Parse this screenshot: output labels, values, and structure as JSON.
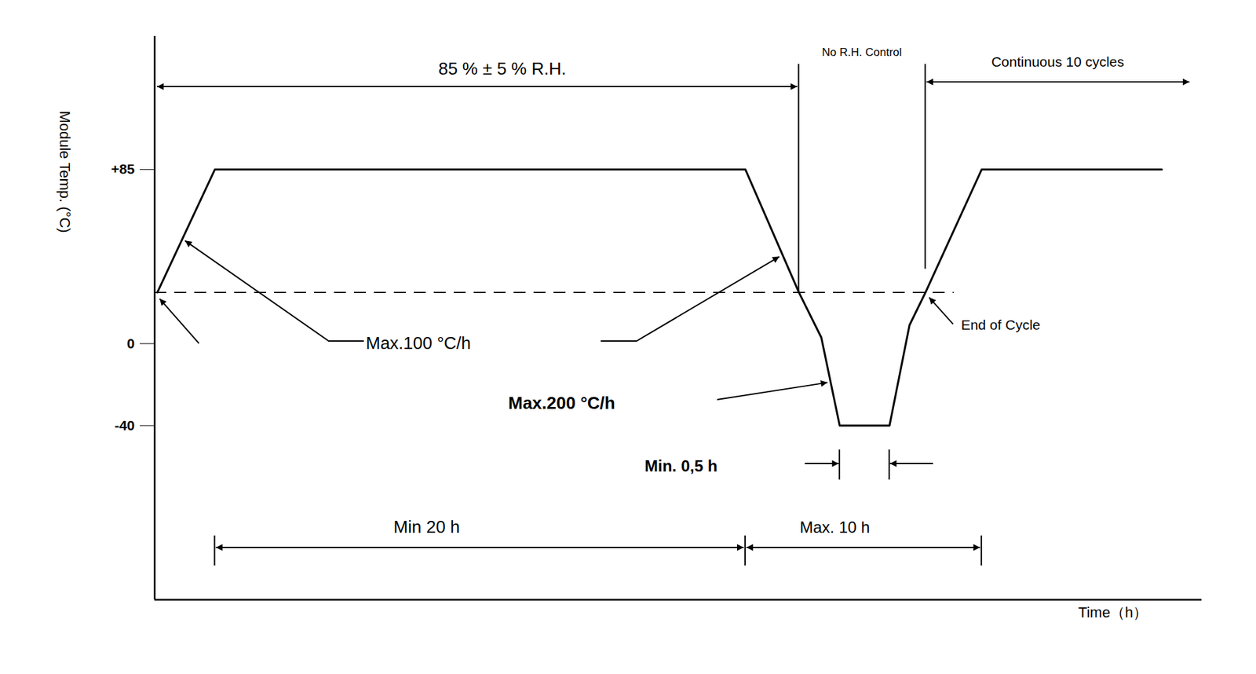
{
  "chart_data": {
    "type": "line",
    "x_label": "Time（h）",
    "y_label": "Module Temp. (°C)",
    "xlim": [
      0,
      39.3
    ],
    "ylim": [
      -125,
      150
    ],
    "yticks": [
      {
        "value": 85,
        "label": "+85"
      },
      0,
      -40
    ],
    "tick_labels": "y",
    "color": "#000000",
    "x": [
      0.1,
      2.26,
      22.17,
      24.18,
      25.02,
      25.71,
      27.58,
      28.33,
      28.93,
      31.04,
      37.8
    ],
    "values": [
      25,
      85,
      85,
      25,
      3,
      -40,
      -40,
      9,
      25,
      85,
      85
    ],
    "reference_line": {
      "y": 25,
      "x": [
        0,
        30
      ],
      "line_style": "dashed"
    },
    "annotations": {
      "rh_span": "85 % ± 5 % R.H.",
      "no_rh": "No R.H. Control",
      "continuous": "Continuous 10 cycles",
      "ramp_100": "Max.100 °C/h",
      "ramp_200": "Max.200 °C/h",
      "dwell": "Min. 0,5 h",
      "hold": "Min 20 h",
      "cold": "Max. 10 h",
      "end": "End of Cycle"
    }
  }
}
